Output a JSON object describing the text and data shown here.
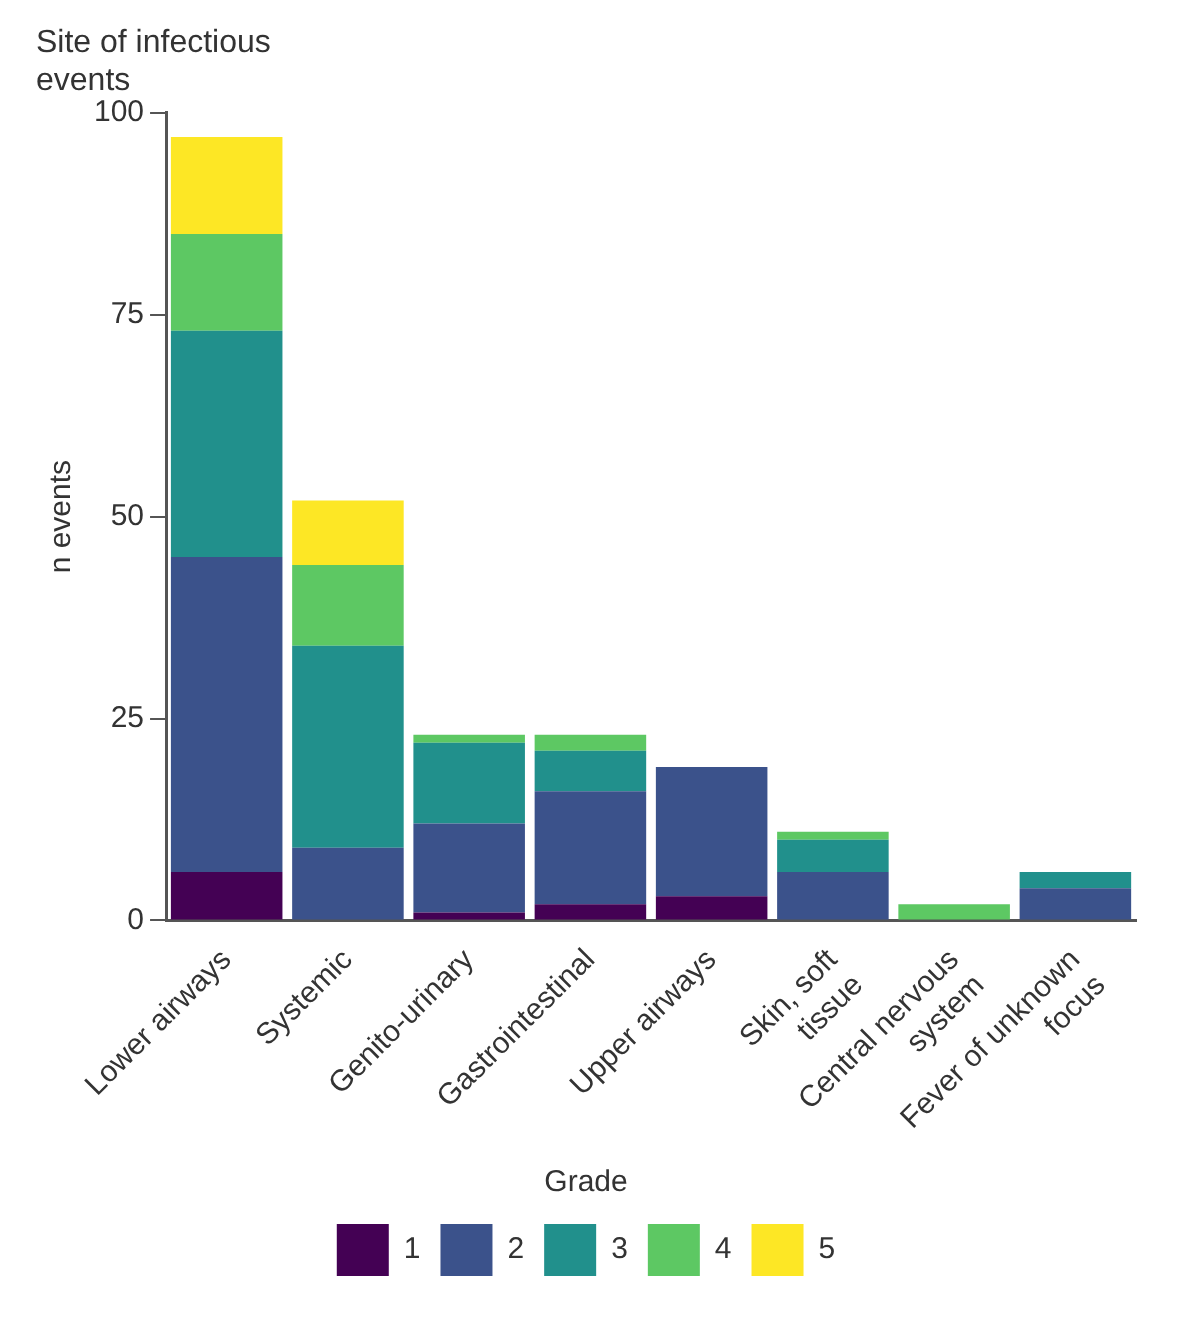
{
  "chart_data": {
    "type": "bar",
    "title": "Site of infectious events",
    "ylabel": "n events",
    "legend_title": "Grade",
    "stacked": true,
    "legend": "bottom",
    "grid": false,
    "categories": [
      "Lower airways",
      "Systemic",
      "Genito-urinary",
      "Gastrointestinal",
      "Upper airways",
      "Skin, soft tissue",
      "Central nervous system",
      "Fever of unknown focus"
    ],
    "ylim": [
      0,
      100
    ],
    "yticks": [
      0,
      25,
      50,
      75,
      100
    ],
    "series": [
      {
        "name": "1",
        "color": "#440154",
        "values": [
          6,
          0,
          1,
          2,
          3,
          0,
          0,
          0
        ]
      },
      {
        "name": "2",
        "color": "#3b528b",
        "values": [
          39,
          9,
          11,
          14,
          16,
          6,
          0,
          4
        ]
      },
      {
        "name": "3",
        "color": "#21908c",
        "values": [
          28,
          25,
          10,
          5,
          0,
          4,
          0,
          2
        ]
      },
      {
        "name": "4",
        "color": "#5dc863",
        "values": [
          12,
          10,
          1,
          2,
          0,
          1,
          2,
          0
        ]
      },
      {
        "name": "5",
        "color": "#fde725",
        "values": [
          12,
          8,
          0,
          0,
          0,
          0,
          0,
          0
        ]
      }
    ]
  }
}
